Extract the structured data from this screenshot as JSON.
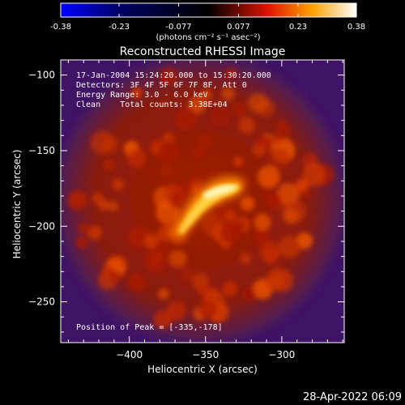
{
  "colorbar": {
    "tick_labels": [
      "-0.38",
      "-0.23",
      "-0.077",
      "0.077",
      "0.23",
      "0.38"
    ],
    "tick_values": [
      -0.38,
      -0.23,
      -0.077,
      0.077,
      0.23,
      0.38
    ],
    "range": [
      -0.38,
      0.38
    ],
    "units_label": "(photons cm⁻² s⁻¹ asec⁻²)",
    "colors": [
      "#0000ff",
      "#000000",
      "#ff0000",
      "#ffff00",
      "#ffffff"
    ]
  },
  "chart_data": {
    "type": "heatmap",
    "title": "Reconstructed RHESSI Image",
    "xlabel": "Heliocentric X (arcsec)",
    "ylabel": "Heliocentric Y (arcsec)",
    "x_ticks": [
      -400,
      -350,
      -300
    ],
    "x_tick_labels": [
      "−400",
      "−350",
      "−300"
    ],
    "y_ticks": [
      -100,
      -150,
      -200,
      -250
    ],
    "y_tick_labels": [
      "−100",
      "−150",
      "−200",
      "−250"
    ],
    "xlim": [
      -445,
      -259
    ],
    "ylim": [
      -277,
      -90
    ],
    "grid": false,
    "peak": {
      "x": -335,
      "y": -178
    },
    "annotations": [
      "17-Jan-2004 15:24:20.000 to 15:30:20.000",
      "Detectors: 3F 4F 5F 6F 7F 8F, Att 0",
      "Energy Range: 3.0 - 6.0 keV",
      "Clean    Total counts: 3.38E+04",
      "Position of Peak = [-335,-178]"
    ]
  },
  "footer": {
    "timestamp": "28-Apr-2022 06:09"
  }
}
